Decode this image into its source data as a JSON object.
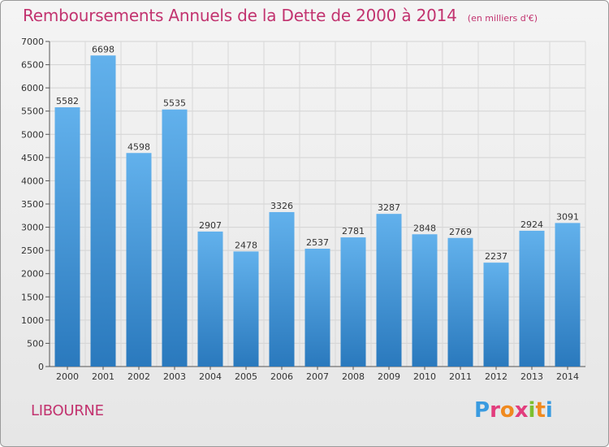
{
  "header": {
    "title": "Remboursements Annuels de la Dette de 2000 à 2014",
    "unit": "(en milliers d'€)"
  },
  "footer": {
    "commune": "LIBOURNE",
    "brand": "Proxiti"
  },
  "colors": {
    "title": "#c2336f",
    "bar_top": "#62b1ec",
    "bar_bottom": "#2a79bd",
    "brand": [
      "#3a9be0",
      "#e23d7d",
      "#f08a1f",
      "#e23d7d",
      "#7cbf2f",
      "#f08a1f",
      "#3a9be0"
    ]
  },
  "chart_data": {
    "type": "bar",
    "categories": [
      "2000",
      "2001",
      "2002",
      "2003",
      "2004",
      "2005",
      "2006",
      "2007",
      "2008",
      "2009",
      "2010",
      "2011",
      "2012",
      "2013",
      "2014"
    ],
    "values": [
      5582,
      6698,
      4598,
      5535,
      2907,
      2478,
      3326,
      2537,
      2781,
      3287,
      2848,
      2769,
      2237,
      2924,
      3091
    ],
    "ylim": [
      0,
      7000
    ],
    "yticks": [
      0,
      500,
      1000,
      1500,
      2000,
      2500,
      3000,
      3500,
      4000,
      4500,
      5000,
      5500,
      6000,
      6500,
      7000
    ],
    "grid": true,
    "xlabel": "",
    "ylabel": ""
  }
}
